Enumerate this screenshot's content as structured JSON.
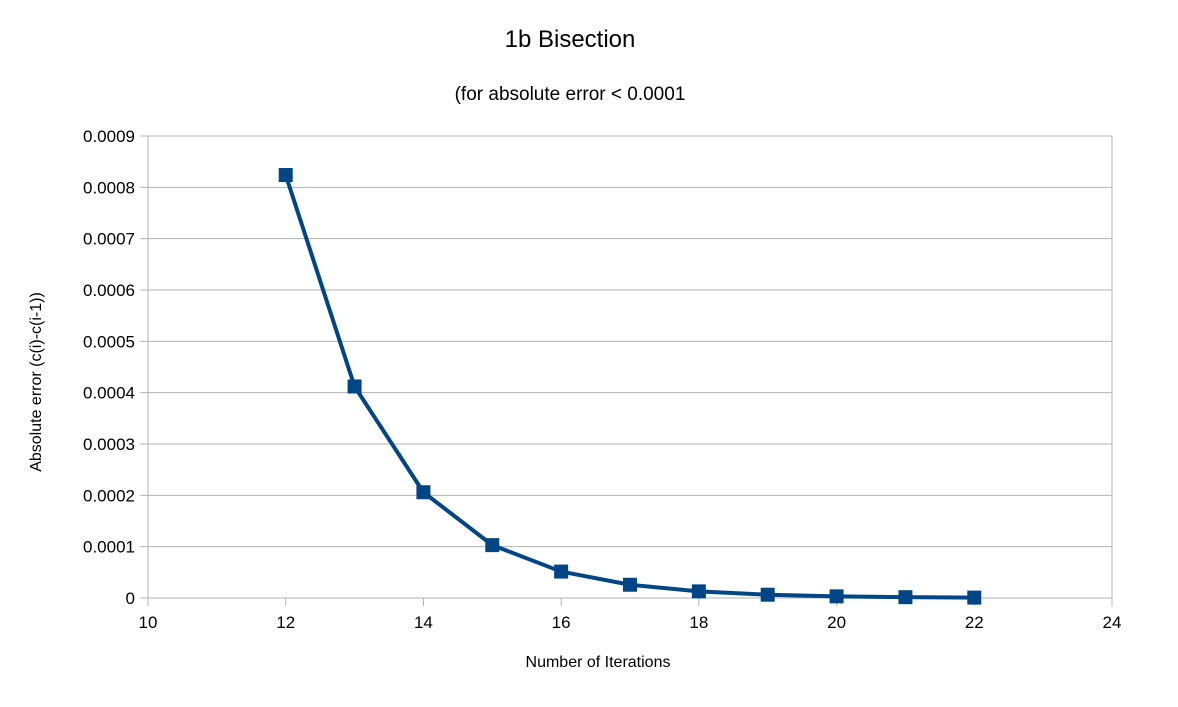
{
  "chart_data": {
    "type": "line",
    "title": "1b Bisection",
    "subtitle": "(for absolute error < 0.0001",
    "xlabel": "Number of Iterations",
    "ylabel": "Absolute error (c(i)-c(i-1))",
    "xlim": [
      10,
      24
    ],
    "ylim": [
      0,
      0.0009
    ],
    "x_ticks": [
      10,
      12,
      14,
      16,
      18,
      20,
      22,
      24
    ],
    "x_tick_labels": [
      "10",
      "12",
      "14",
      "16",
      "18",
      "20",
      "22",
      "24"
    ],
    "y_ticks": [
      0,
      0.0001,
      0.0002,
      0.0003,
      0.0004,
      0.0005,
      0.0006,
      0.0007,
      0.0008,
      0.0009
    ],
    "y_tick_labels": [
      "0",
      "0.0001",
      "0.0002",
      "0.0003",
      "0.0004",
      "0.0005",
      "0.0006",
      "0.0007",
      "0.0008",
      "0.0009"
    ],
    "grid": "horizontal",
    "legend": "none",
    "series": [
      {
        "color": "#004586",
        "marker": "square",
        "x": [
          12,
          13,
          14,
          15,
          16,
          17,
          18,
          19,
          20,
          21,
          22
        ],
        "y": [
          0.000824,
          0.000412,
          0.000206,
          0.000103,
          5.15e-05,
          2.58e-05,
          1.29e-05,
          6.4e-06,
          3.2e-06,
          1.6e-06,
          8e-07
        ]
      }
    ]
  },
  "colors": {
    "series": "#004586",
    "grid": "#b3b3b3",
    "axis": "#b3b3b3",
    "background": "#ffffff"
  }
}
